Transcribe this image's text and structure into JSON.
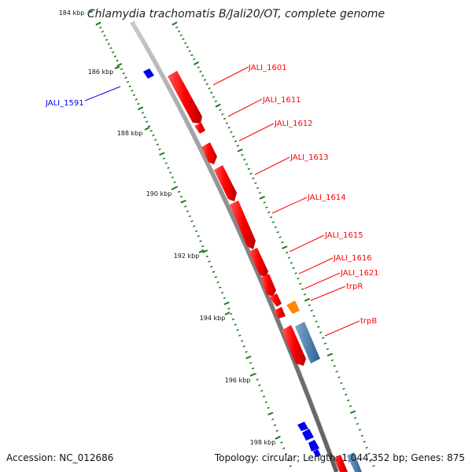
{
  "title": "Chlamydia trachomatis B/Jali20/OT, complete genome",
  "footer": {
    "accession": "Accession: NC_012686",
    "stats": "Topology: circular; Length: 1,044,352 bp; Genes: 875"
  },
  "colors": {
    "backbone": "#8a8a8a",
    "tick": "#1a7a1a",
    "forward_gene": "#ff0000",
    "reverse_gene": "#0000ee",
    "trpR": "#ff8800",
    "trpB": "#4682b4"
  },
  "ticks": [
    {
      "label": "184 kbp"
    },
    {
      "label": "186 kbp"
    },
    {
      "label": "188 kbp"
    },
    {
      "label": "190 kbp"
    },
    {
      "label": "192 kbp"
    },
    {
      "label": "194 kbp"
    },
    {
      "label": "196 kbp"
    },
    {
      "label": "198 kbp"
    }
  ],
  "gene_labels": [
    {
      "text": "JALI_1591",
      "strand": "reverse"
    },
    {
      "text": "JALI_1601",
      "strand": "forward"
    },
    {
      "text": "JALI_1611",
      "strand": "forward"
    },
    {
      "text": "JALI_1612",
      "strand": "forward"
    },
    {
      "text": "JALI_1613",
      "strand": "forward"
    },
    {
      "text": "JALI_1614",
      "strand": "forward"
    },
    {
      "text": "JALI_1615",
      "strand": "forward"
    },
    {
      "text": "JALI_1616",
      "strand": "forward"
    },
    {
      "text": "JALI_1621",
      "strand": "forward"
    },
    {
      "text": "trpR",
      "strand": "forward"
    },
    {
      "text": "trpB",
      "strand": "forward"
    }
  ]
}
